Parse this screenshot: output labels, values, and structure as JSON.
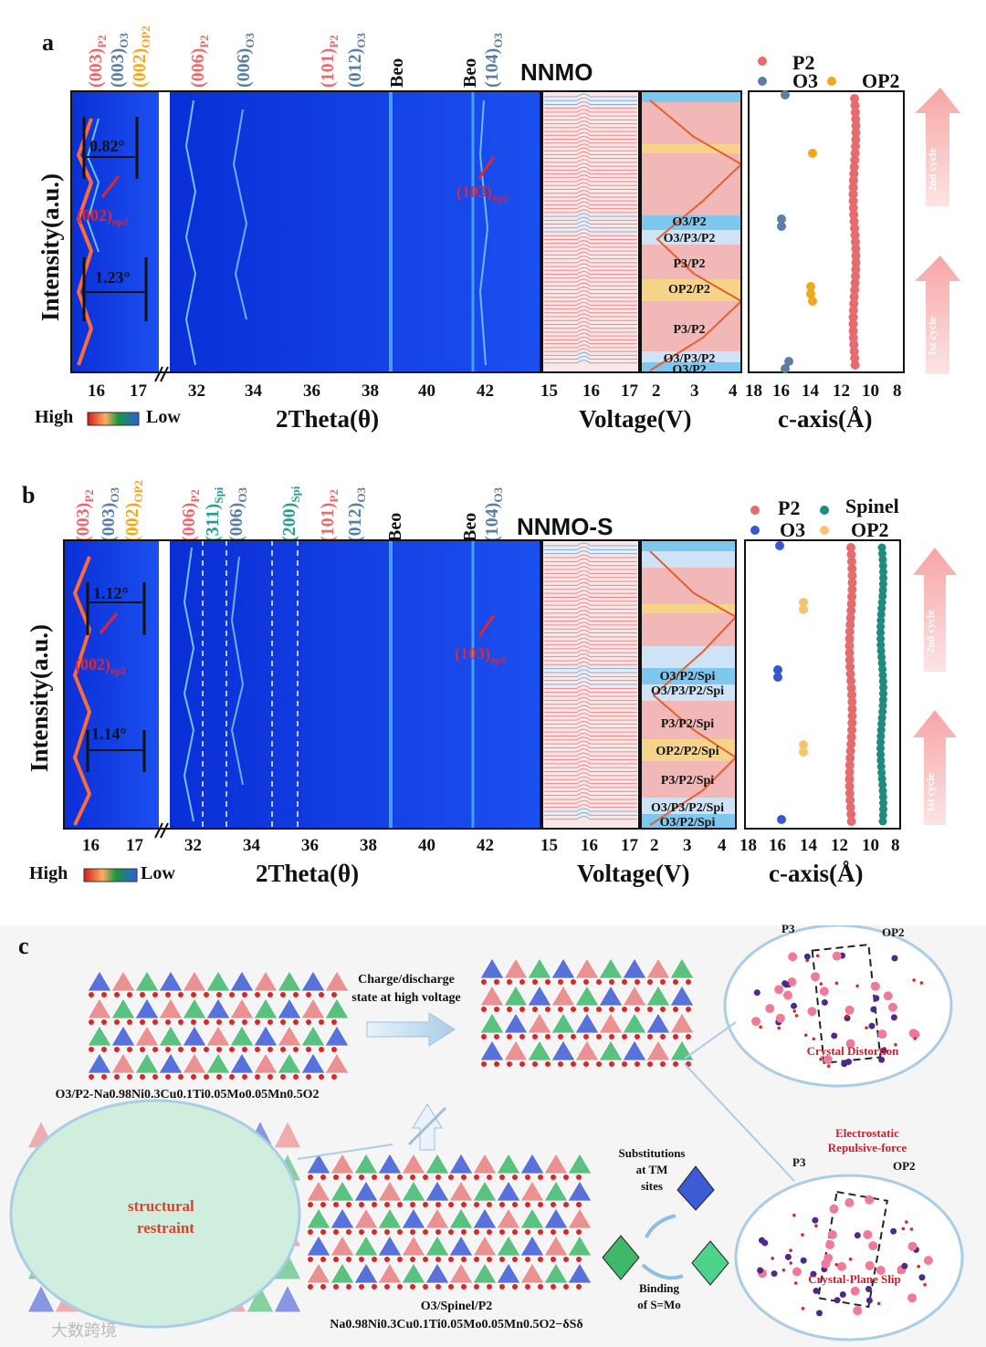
{
  "panel_a": {
    "letter": "a",
    "title": "NNMO",
    "ylabel": "Intensity(a.u.)",
    "xlabel_2theta": "2Theta(θ)",
    "xlabel_voltage": "Voltage(V)",
    "xlabel_caxis": "c-axis(Å)",
    "colorbar_high": "High",
    "colorbar_low": "Low",
    "ticks_left": [
      "16",
      "17"
    ],
    "ticks_main": [
      "32",
      "34",
      "36",
      "38",
      "40",
      "42"
    ],
    "ticks_stack": [
      "15",
      "16",
      "17"
    ],
    "ticks_voltage": [
      "2",
      "3",
      "4"
    ],
    "ticks_caxis": [
      "18",
      "16",
      "14",
      "12",
      "10",
      "8"
    ],
    "angle_1": "0.82°",
    "angle_2": "1.23°",
    "annot_002": "(002)",
    "annot_002_sub": "op2",
    "annot_103": "(103)",
    "annot_103_sub": "op2",
    "phases": [
      "O3/P2",
      "O3/P3/P2",
      "P3/P2",
      "OP2/P2",
      "P3/P2",
      "O3/P3/P2",
      "O3/P2"
    ],
    "legend": {
      "p2": "P2",
      "o3": "O3",
      "op2": "OP2"
    },
    "cycle_1": "1st cycle",
    "cycle_2": "2nd cycle"
  },
  "panel_b": {
    "letter": "b",
    "title": "NNMO-S",
    "ylabel": "Intensity(a.u.)",
    "xlabel_2theta": "2Theta(θ)",
    "xlabel_voltage": "Voltage(V)",
    "xlabel_caxis": "c-axis(Å)",
    "colorbar_high": "High",
    "colorbar_low": "Low",
    "ticks_left": [
      "16",
      "17"
    ],
    "ticks_main": [
      "32",
      "34",
      "36",
      "38",
      "40",
      "42"
    ],
    "ticks_stack": [
      "15",
      "16",
      "17"
    ],
    "ticks_voltage": [
      "2",
      "3",
      "4"
    ],
    "ticks_caxis": [
      "18",
      "16",
      "14",
      "12",
      "10",
      "8"
    ],
    "angle_1": "1.12°",
    "angle_2": "1.14°",
    "annot_002": "(002)",
    "annot_002_sub": "op2",
    "annot_103": "(103)",
    "annot_103_sub": "op2",
    "phases": [
      "O3/P2/Spi",
      "O3/P3/P2/Spi",
      "P3/P2/Spi",
      "OP2/P2/Spi",
      "P3/P2/Spi",
      "O3/P3/P2/Spi",
      "O3/P2/Spi"
    ],
    "legend": {
      "p2": "P2",
      "o3": "O3",
      "spinel": "Spinel",
      "op2": "OP2"
    },
    "cycle_1": "1st cycle",
    "cycle_2": "2nd cycle"
  },
  "peaks_a": [
    {
      "hkl": "(003)",
      "sub": "P2",
      "color": "#e56b6f"
    },
    {
      "hkl": "(003)",
      "sub": "O3",
      "color": "#5b7fa3"
    },
    {
      "hkl": "(002)",
      "sub": "OP2",
      "color": "#f0a81c"
    },
    {
      "hkl": "(006)",
      "sub": "P2",
      "color": "#e56b6f"
    },
    {
      "hkl": "(006)",
      "sub": "O3",
      "color": "#5b7fa3"
    },
    {
      "hkl": "(101)",
      "sub": "P2",
      "color": "#e56b6f"
    },
    {
      "hkl": "(012)",
      "sub": "O3",
      "color": "#5b7fa3"
    },
    {
      "hkl": "Beo",
      "sub": "",
      "color": "#111111"
    },
    {
      "hkl": "Beo",
      "sub": "",
      "color": "#111111"
    },
    {
      "hkl": "(104)",
      "sub": "O3",
      "color": "#5b7fa3"
    }
  ],
  "peaks_b": [
    {
      "hkl": "(003)",
      "sub": "P2",
      "color": "#e56b6f"
    },
    {
      "hkl": "(003)",
      "sub": "O3",
      "color": "#5b7fa3"
    },
    {
      "hkl": "(002)",
      "sub": "OP2",
      "color": "#f0a81c"
    },
    {
      "hkl": "(006)",
      "sub": "P2",
      "color": "#e56b6f"
    },
    {
      "hkl": "(311)",
      "sub": "Spi",
      "color": "#2a9d8f"
    },
    {
      "hkl": "(006)",
      "sub": "O3",
      "color": "#5b7fa3"
    },
    {
      "hkl": "(200)",
      "sub": "Spi",
      "color": "#2a9d8f"
    },
    {
      "hkl": "(101)",
      "sub": "P2",
      "color": "#e56b6f"
    },
    {
      "hkl": "(012)",
      "sub": "O3",
      "color": "#5b7fa3"
    },
    {
      "hkl": "Beo",
      "sub": "",
      "color": "#111111"
    },
    {
      "hkl": "Beo",
      "sub": "",
      "color": "#111111"
    },
    {
      "hkl": "(104)",
      "sub": "O3",
      "color": "#5b7fa3"
    }
  ],
  "panel_c": {
    "letter": "c",
    "arrow_text_1": "Charge/discharge",
    "arrow_text_2": "state at high voltage",
    "formula_top": "O3/P2-Na0.98Ni0.3Cu0.1Ti0.05Mo0.05Mn0.5O2",
    "formula_bottom_1": "O3/Spinel/P2",
    "formula_bottom_2": "Na0.98Ni0.3Cu0.1Ti0.05Mo0.05Mn0.5O2−δSδ",
    "structural_restraint_1": "structural",
    "structural_restraint_2": "restraint",
    "p3": "P3",
    "op2": "OP2",
    "crystal_distortion": "Crystal Distortion",
    "electrostatic_1": "Electrostatic",
    "electrostatic_2": "Repulsive-force",
    "crystal_plane_slip": "Crystal-Plane Slip",
    "substitutions_1": "Substitutions",
    "substitutions_2": "at TM",
    "substitutions_3": "sites",
    "binding_1": "Binding",
    "binding_2": "of S=Mo"
  },
  "watermark": "大数跨境"
}
